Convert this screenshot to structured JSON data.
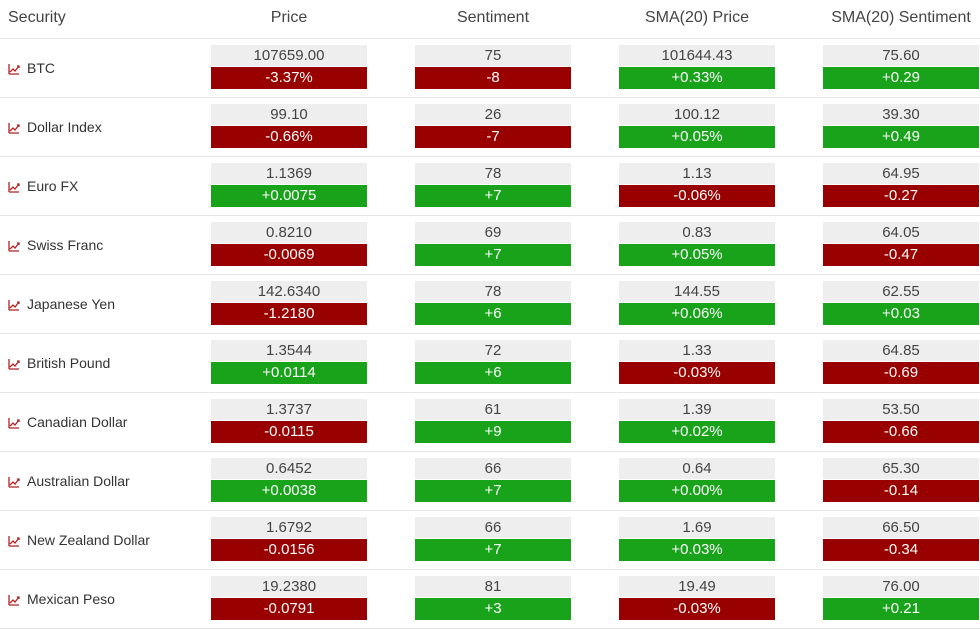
{
  "colors": {
    "negative": "#990000",
    "positive": "#18a31a",
    "value_bg": "#eeeeee",
    "icon": "#b22222"
  },
  "headers": {
    "security": "Security",
    "price": "Price",
    "sentiment": "Sentiment",
    "sma_price": "SMA(20) Price",
    "sma_sentiment": "SMA(20) Sentiment"
  },
  "rows": [
    {
      "name": "BTC",
      "icon": "trend-chart-icon",
      "price": "107659.00",
      "price_chg": "-3.37%",
      "price_dir": "neg",
      "sent": "75",
      "sent_chg": "-8",
      "sent_dir": "neg",
      "sma_price": "101644.43",
      "sma_price_chg": "+0.33%",
      "sma_price_dir": "pos",
      "sma_sent": "75.60",
      "sma_sent_chg": "+0.29",
      "sma_sent_dir": "pos"
    },
    {
      "name": "Dollar Index",
      "icon": "trend-chart-icon",
      "price": "99.10",
      "price_chg": "-0.66%",
      "price_dir": "neg",
      "sent": "26",
      "sent_chg": "-7",
      "sent_dir": "neg",
      "sma_price": "100.12",
      "sma_price_chg": "+0.05%",
      "sma_price_dir": "pos",
      "sma_sent": "39.30",
      "sma_sent_chg": "+0.49",
      "sma_sent_dir": "pos"
    },
    {
      "name": "Euro FX",
      "icon": "trend-chart-icon",
      "price": "1.1369",
      "price_chg": "+0.0075",
      "price_dir": "pos",
      "sent": "78",
      "sent_chg": "+7",
      "sent_dir": "pos",
      "sma_price": "1.13",
      "sma_price_chg": "-0.06%",
      "sma_price_dir": "neg",
      "sma_sent": "64.95",
      "sma_sent_chg": "-0.27",
      "sma_sent_dir": "neg"
    },
    {
      "name": "Swiss Franc",
      "icon": "trend-chart-icon",
      "price": "0.8210",
      "price_chg": "-0.0069",
      "price_dir": "neg",
      "sent": "69",
      "sent_chg": "+7",
      "sent_dir": "pos",
      "sma_price": "0.83",
      "sma_price_chg": "+0.05%",
      "sma_price_dir": "pos",
      "sma_sent": "64.05",
      "sma_sent_chg": "-0.47",
      "sma_sent_dir": "neg"
    },
    {
      "name": "Japanese Yen",
      "icon": "trend-chart-icon",
      "price": "142.6340",
      "price_chg": "-1.2180",
      "price_dir": "neg",
      "sent": "78",
      "sent_chg": "+6",
      "sent_dir": "pos",
      "sma_price": "144.55",
      "sma_price_chg": "+0.06%",
      "sma_price_dir": "pos",
      "sma_sent": "62.55",
      "sma_sent_chg": "+0.03",
      "sma_sent_dir": "pos"
    },
    {
      "name": "British Pound",
      "icon": "trend-chart-icon",
      "price": "1.3544",
      "price_chg": "+0.0114",
      "price_dir": "pos",
      "sent": "72",
      "sent_chg": "+6",
      "sent_dir": "pos",
      "sma_price": "1.33",
      "sma_price_chg": "-0.03%",
      "sma_price_dir": "neg",
      "sma_sent": "64.85",
      "sma_sent_chg": "-0.69",
      "sma_sent_dir": "neg"
    },
    {
      "name": "Canadian Dollar",
      "icon": "trend-chart-icon",
      "price": "1.3737",
      "price_chg": "-0.0115",
      "price_dir": "neg",
      "sent": "61",
      "sent_chg": "+9",
      "sent_dir": "pos",
      "sma_price": "1.39",
      "sma_price_chg": "+0.02%",
      "sma_price_dir": "pos",
      "sma_sent": "53.50",
      "sma_sent_chg": "-0.66",
      "sma_sent_dir": "neg"
    },
    {
      "name": "Australian Dollar",
      "icon": "trend-chart-icon",
      "price": "0.6452",
      "price_chg": "+0.0038",
      "price_dir": "pos",
      "sent": "66",
      "sent_chg": "+7",
      "sent_dir": "pos",
      "sma_price": "0.64",
      "sma_price_chg": "+0.00%",
      "sma_price_dir": "pos",
      "sma_sent": "65.30",
      "sma_sent_chg": "-0.14",
      "sma_sent_dir": "neg"
    },
    {
      "name": "New Zealand Dollar",
      "icon": "trend-chart-icon",
      "price": "1.6792",
      "price_chg": "-0.0156",
      "price_dir": "neg",
      "sent": "66",
      "sent_chg": "+7",
      "sent_dir": "pos",
      "sma_price": "1.69",
      "sma_price_chg": "+0.03%",
      "sma_price_dir": "pos",
      "sma_sent": "66.50",
      "sma_sent_chg": "-0.34",
      "sma_sent_dir": "neg"
    },
    {
      "name": "Mexican Peso",
      "icon": "trend-chart-icon",
      "price": "19.2380",
      "price_chg": "-0.0791",
      "price_dir": "neg",
      "sent": "81",
      "sent_chg": "+3",
      "sent_dir": "pos",
      "sma_price": "19.49",
      "sma_price_chg": "-0.03%",
      "sma_price_dir": "neg",
      "sma_sent": "76.00",
      "sma_sent_chg": "+0.21",
      "sma_sent_dir": "pos"
    }
  ]
}
